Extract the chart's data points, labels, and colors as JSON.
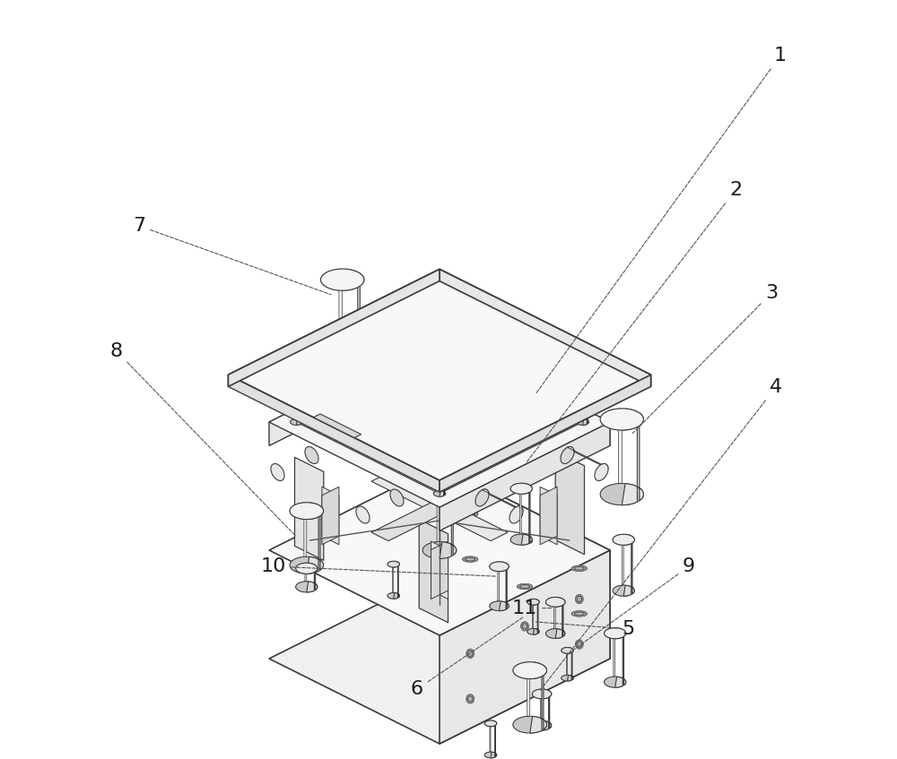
{
  "background_color": "#ffffff",
  "line_color": "#3a3a3a",
  "label_color_dark": "#1a1a1a",
  "line_width": 1.0,
  "fig_width": 10.0,
  "fig_height": 8.47,
  "label_fontsize": 16
}
